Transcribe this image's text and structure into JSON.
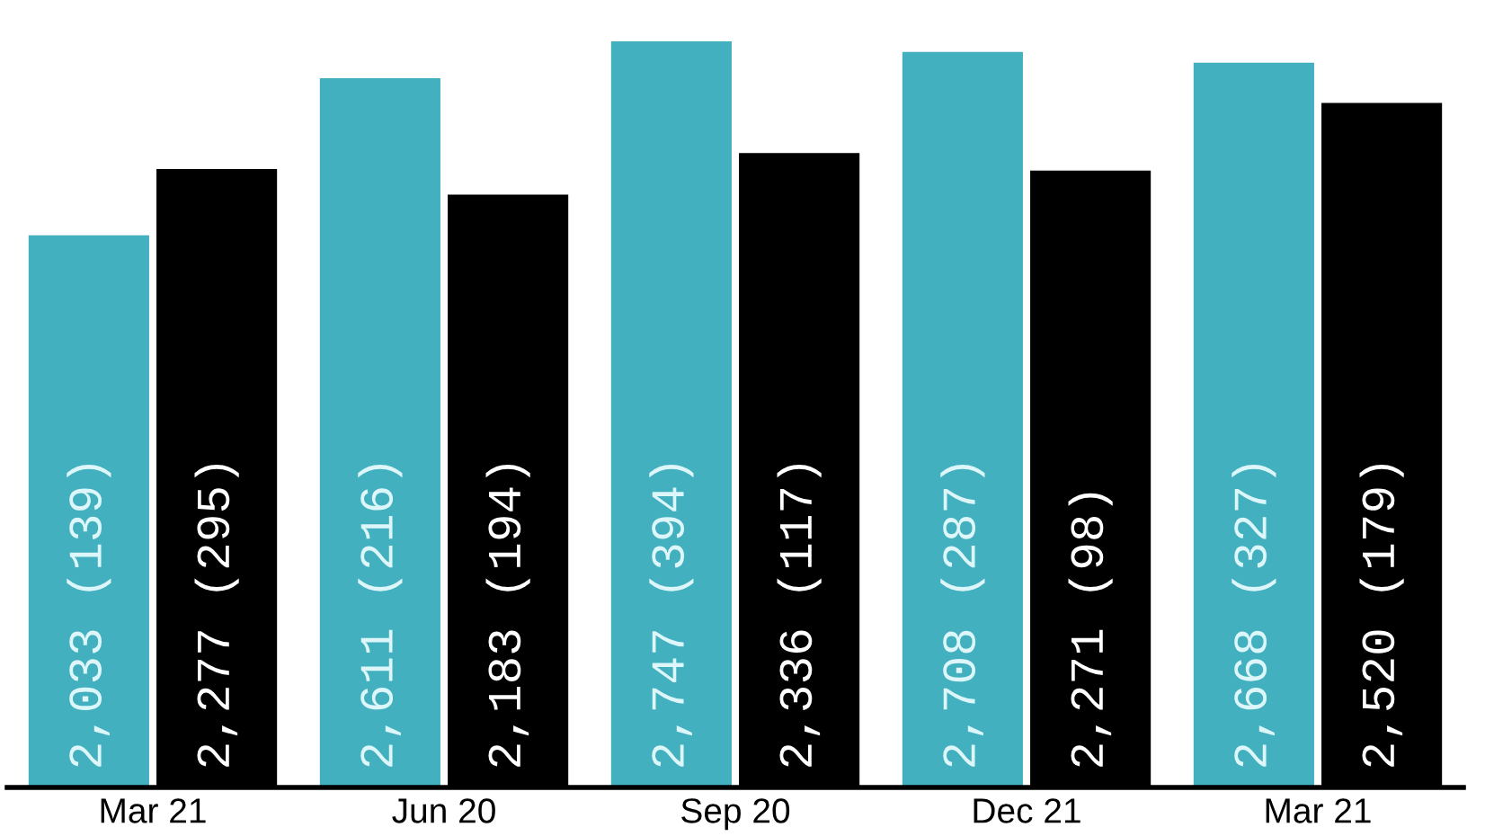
{
  "chart_data": {
    "type": "bar",
    "categories": [
      "Mar 21",
      "Jun 20",
      "Sep 20",
      "Dec 21",
      "Mar 21"
    ],
    "series": [
      {
        "color": "#43b0bf",
        "values": [
          2033,
          2611,
          2747,
          2708,
          2668
        ],
        "value_labels": [
          "2,033 (139)",
          "2,611 (216)",
          "2,747 (394)",
          "2,708 (287)",
          "2,668 (327)"
        ]
      },
      {
        "color": "#000000",
        "values": [
          2277,
          2183,
          2336,
          2271,
          2520
        ],
        "value_labels": [
          "2,277 (295)",
          "2,183 (194)",
          "2,336 (117)",
          "2,271 (98)",
          "2,520 (179)"
        ]
      }
    ]
  }
}
